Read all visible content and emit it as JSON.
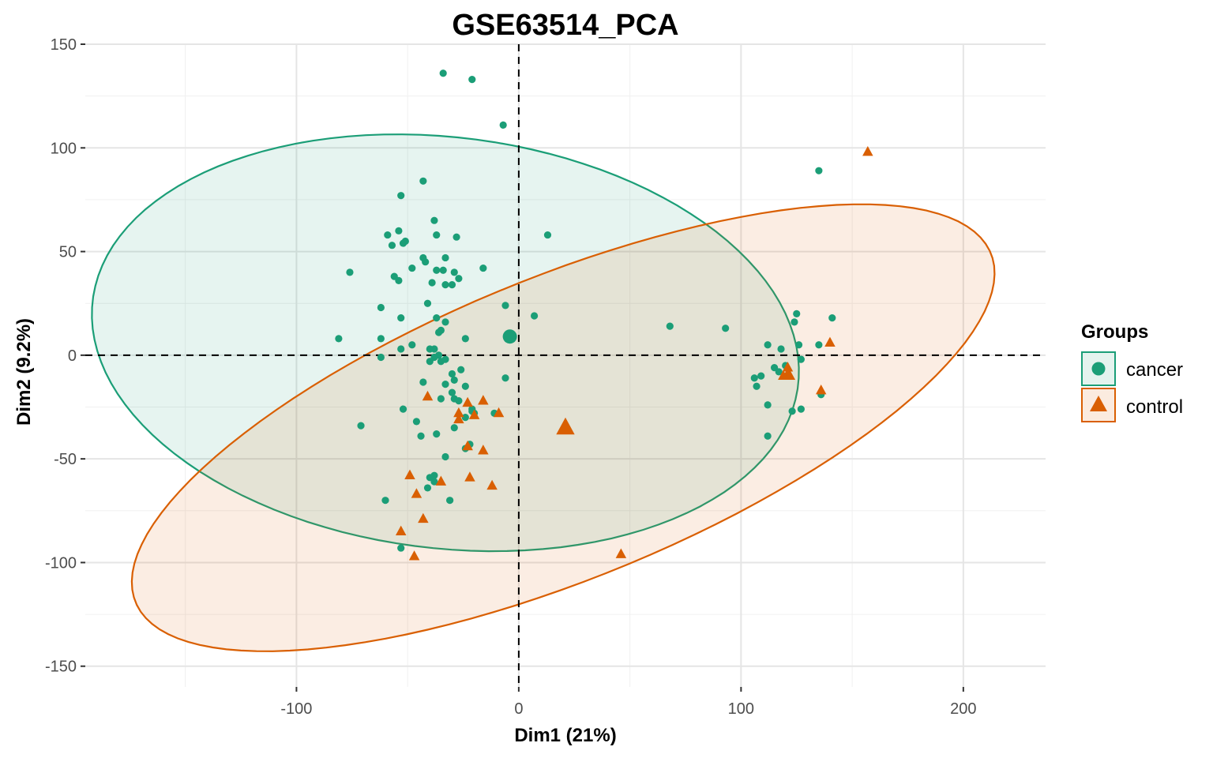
{
  "chart_data": {
    "type": "scatter",
    "title": "GSE63514_PCA",
    "xlabel": "Dim1 (21%)",
    "ylabel": "Dim2 (9.2%)",
    "xlim": [
      -195,
      237
    ],
    "ylim": [
      -160,
      150
    ],
    "xticks": [
      -100,
      0,
      100,
      200
    ],
    "yticks": [
      -150,
      -100,
      -50,
      0,
      50,
      100,
      150
    ],
    "xtick_labels": [
      "-100",
      "0",
      "100",
      "200"
    ],
    "ytick_labels": [
      "-150",
      "-100",
      "-50",
      "0",
      "50",
      "100",
      "150"
    ],
    "grid": true,
    "reference_lines": {
      "x": 0,
      "y": 0,
      "style": "dashed"
    },
    "legend": {
      "title": "Groups",
      "position": "right",
      "entries": [
        "cancer",
        "control"
      ]
    },
    "series": [
      {
        "name": "cancer",
        "marker": "circle",
        "color": "#1B9E77",
        "centroid": [
          -4,
          9
        ],
        "ellipse": {
          "center": [
            -33,
            6
          ],
          "rx": 160,
          "ry": 99,
          "angle_deg": -8
        },
        "points": [
          [
            -34,
            136
          ],
          [
            -21,
            133
          ],
          [
            -7,
            111
          ],
          [
            -53,
            77
          ],
          [
            -43,
            84
          ],
          [
            -38,
            65
          ],
          [
            -59,
            58
          ],
          [
            -54,
            60
          ],
          [
            -57,
            53
          ],
          [
            -52,
            54
          ],
          [
            -37,
            58
          ],
          [
            -28,
            57
          ],
          [
            13,
            58
          ],
          [
            -51,
            55
          ],
          [
            -43,
            47
          ],
          [
            -42,
            45
          ],
          [
            -33,
            47
          ],
          [
            -48,
            42
          ],
          [
            -76,
            40
          ],
          [
            -37,
            41
          ],
          [
            -34,
            41
          ],
          [
            -29,
            40
          ],
          [
            -16,
            42
          ],
          [
            -56,
            38
          ],
          [
            -54,
            36
          ],
          [
            -39,
            35
          ],
          [
            -33,
            34
          ],
          [
            -30,
            34
          ],
          [
            -27,
            37
          ],
          [
            -41,
            25
          ],
          [
            -6,
            24
          ],
          [
            -62,
            23
          ],
          [
            -53,
            18
          ],
          [
            -37,
            18
          ],
          [
            7,
            19
          ],
          [
            -81,
            8
          ],
          [
            -33,
            16
          ],
          [
            -36,
            11
          ],
          [
            -35,
            12
          ],
          [
            -62,
            8
          ],
          [
            -24,
            8
          ],
          [
            -48,
            5
          ],
          [
            -53,
            3
          ],
          [
            -40,
            3
          ],
          [
            -38,
            3
          ],
          [
            -36,
            0
          ],
          [
            -35,
            -3
          ],
          [
            -38,
            -1
          ],
          [
            -33,
            -2
          ],
          [
            -62,
            -1
          ],
          [
            -40,
            -3
          ],
          [
            -30,
            -9
          ],
          [
            -26,
            -7
          ],
          [
            -29,
            -12
          ],
          [
            -43,
            -13
          ],
          [
            -33,
            -14
          ],
          [
            -24,
            -15
          ],
          [
            -30,
            -18
          ],
          [
            -29,
            -21
          ],
          [
            -35,
            -21
          ],
          [
            -27,
            -22
          ],
          [
            -52,
            -26
          ],
          [
            -21,
            -26
          ],
          [
            -20,
            -28
          ],
          [
            -24,
            -30
          ],
          [
            -46,
            -32
          ],
          [
            -29,
            -35
          ],
          [
            -71,
            -34
          ],
          [
            -37,
            -38
          ],
          [
            -44,
            -39
          ],
          [
            -22,
            -43
          ],
          [
            -24,
            -45
          ],
          [
            -33,
            -49
          ],
          [
            -38,
            -58
          ],
          [
            -40,
            -59
          ],
          [
            -38,
            -61
          ],
          [
            -41,
            -64
          ],
          [
            -31,
            -70
          ],
          [
            -60,
            -70
          ],
          [
            -53,
            -93
          ],
          [
            -6,
            -11
          ],
          [
            -21,
            -27
          ],
          [
            -11,
            -28
          ],
          [
            68,
            14
          ],
          [
            93,
            13
          ],
          [
            135,
            89
          ],
          [
            141,
            18
          ],
          [
            125,
            20
          ],
          [
            124,
            16
          ],
          [
            135,
            5
          ],
          [
            126,
            5
          ],
          [
            112,
            5
          ],
          [
            118,
            3
          ],
          [
            127,
            -2
          ],
          [
            120,
            -5
          ],
          [
            115,
            -6
          ],
          [
            117,
            -8
          ],
          [
            106,
            -11
          ],
          [
            109,
            -10
          ],
          [
            121,
            -10
          ],
          [
            107,
            -15
          ],
          [
            112,
            -24
          ],
          [
            136,
            -19
          ],
          [
            123,
            -27
          ],
          [
            127,
            -26
          ],
          [
            112,
            -39
          ]
        ]
      },
      {
        "name": "control",
        "marker": "triangle",
        "color": "#D95F02",
        "centroid": [
          21,
          -35
        ],
        "ellipse": {
          "center": [
            20,
            -35
          ],
          "rx": 210,
          "ry": 72,
          "angle_deg": 24
        },
        "points": [
          [
            157,
            98
          ],
          [
            140,
            6
          ],
          [
            121,
            -6
          ],
          [
            121,
            -9
          ],
          [
            119,
            -10
          ],
          [
            122,
            -10
          ],
          [
            136,
            -17
          ],
          [
            -41,
            -20
          ],
          [
            -16,
            -22
          ],
          [
            -23,
            -23
          ],
          [
            -27,
            -28
          ],
          [
            -20,
            -29
          ],
          [
            -9,
            -28
          ],
          [
            -27,
            -31
          ],
          [
            -23,
            -44
          ],
          [
            -16,
            -46
          ],
          [
            -49,
            -58
          ],
          [
            -22,
            -59
          ],
          [
            -35,
            -61
          ],
          [
            -12,
            -63
          ],
          [
            -46,
            -67
          ],
          [
            -43,
            -79
          ],
          [
            -53,
            -85
          ],
          [
            -47,
            -97
          ],
          [
            46,
            -96
          ]
        ]
      }
    ]
  }
}
